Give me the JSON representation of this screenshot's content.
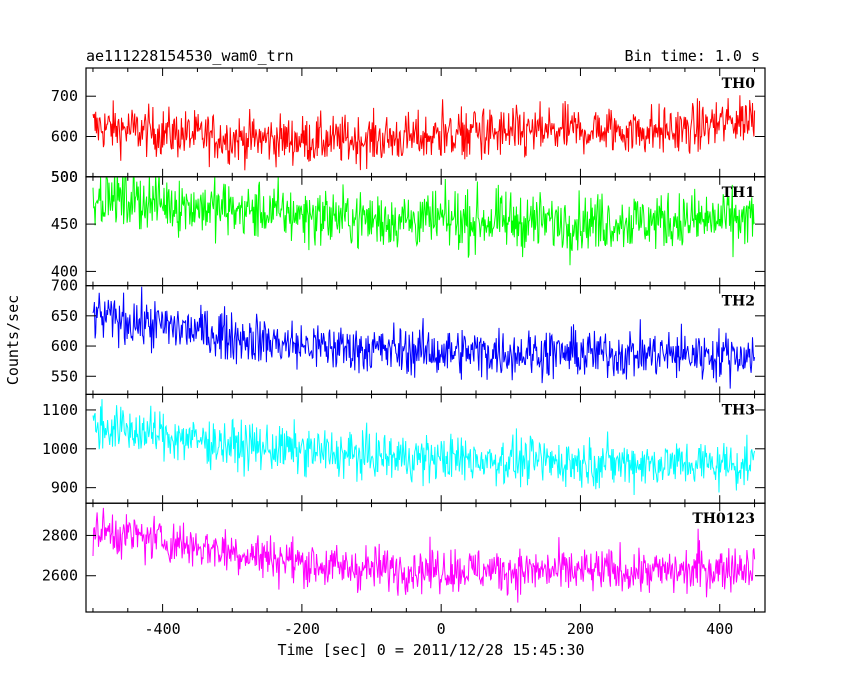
{
  "chart_data": {
    "type": "line",
    "title": "ae111228154530_wam0_trn",
    "bin_label": "Bin time: 1.0 s",
    "xlabel": "Time [sec] 0 = 2011/12/28 15:45:30",
    "ylabel": "Counts/sec",
    "xlim": [
      -510,
      465
    ],
    "x_range": [
      -500,
      450
    ],
    "x_ticks": [
      -400,
      -200,
      0,
      200,
      400
    ],
    "grid": false,
    "panels": [
      {
        "name": "TH0",
        "color": "#ff0000",
        "ylim": [
          500,
          770
        ],
        "y_ticks": [
          500,
          600,
          700
        ],
        "base": [
          [
            -500,
            625
          ],
          [
            -300,
            595
          ],
          [
            -150,
            590
          ],
          [
            0,
            600
          ],
          [
            200,
            615
          ],
          [
            350,
            615
          ],
          [
            450,
            650
          ]
        ],
        "noise": 30,
        "spikes": [
          [
            2,
            110
          ],
          [
            48,
            70
          ],
          [
            60,
            45
          ]
        ]
      },
      {
        "name": "TH1",
        "color": "#00ff00",
        "ylim": [
          385,
          500
        ],
        "y_ticks": [
          400,
          450,
          500
        ],
        "base": [
          [
            -500,
            480
          ],
          [
            -300,
            465
          ],
          [
            -100,
            455
          ],
          [
            200,
            452
          ],
          [
            450,
            455
          ]
        ],
        "noise": 15,
        "spikes": []
      },
      {
        "name": "TH2",
        "color": "#0000ff",
        "ylim": [
          520,
          700
        ],
        "y_ticks": [
          550,
          600,
          650,
          700
        ],
        "base": [
          [
            -500,
            650
          ],
          [
            -350,
            625
          ],
          [
            -200,
            600
          ],
          [
            0,
            590
          ],
          [
            450,
            585
          ]
        ],
        "noise": 20,
        "spikes": []
      },
      {
        "name": "TH3",
        "color": "#00ffff",
        "ylim": [
          860,
          1140
        ],
        "y_ticks": [
          900,
          1000,
          1100
        ],
        "base": [
          [
            -500,
            1060
          ],
          [
            -300,
            1010
          ],
          [
            -100,
            980
          ],
          [
            200,
            965
          ],
          [
            450,
            960
          ]
        ],
        "noise": 30,
        "spikes": []
      },
      {
        "name": "TH0123",
        "color": "#ff00ff",
        "ylim": [
          2420,
          2960
        ],
        "y_ticks": [
          2600,
          2800
        ],
        "base": [
          [
            -500,
            2830
          ],
          [
            -300,
            2720
          ],
          [
            -150,
            2640
          ],
          [
            100,
            2625
          ],
          [
            350,
            2620
          ],
          [
            450,
            2650
          ]
        ],
        "noise": 55,
        "spikes": [
          [
            370,
            80
          ]
        ]
      }
    ]
  }
}
